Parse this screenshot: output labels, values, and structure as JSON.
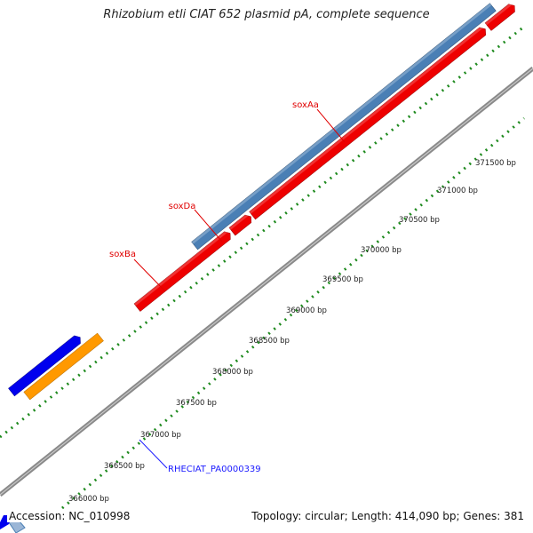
{
  "title": "Rhizobium etli CIAT 652 plasmid pA, complete sequence",
  "footer": {
    "accession": "Accession: NC_010998",
    "summary": "Topology: circular; Length: 414,090 bp; Genes: 381"
  },
  "colors": {
    "backbone": "#8a8a8a",
    "tick": "#1e8a1e",
    "gene_red": "#ee0000",
    "gene_steelblue": "#4a7fb5",
    "gene_blue": "#0000ee",
    "gene_orange": "#ff9900",
    "label_red": "#e00000",
    "label_blue": "#1a1aff"
  },
  "gene_labels": [
    {
      "name": "soxAa"
    },
    {
      "name": "soxDa"
    },
    {
      "name": "soxBa"
    }
  ],
  "link_label": "RHECIAT_PA0000339",
  "position_ticks": [
    "366000 bp",
    "366500 bp",
    "367000 bp",
    "367500 bp",
    "368000 bp",
    "368500 bp",
    "369000 bp",
    "369500 bp",
    "370000 bp",
    "370500 bp",
    "371000 bp",
    "371500 bp"
  ]
}
